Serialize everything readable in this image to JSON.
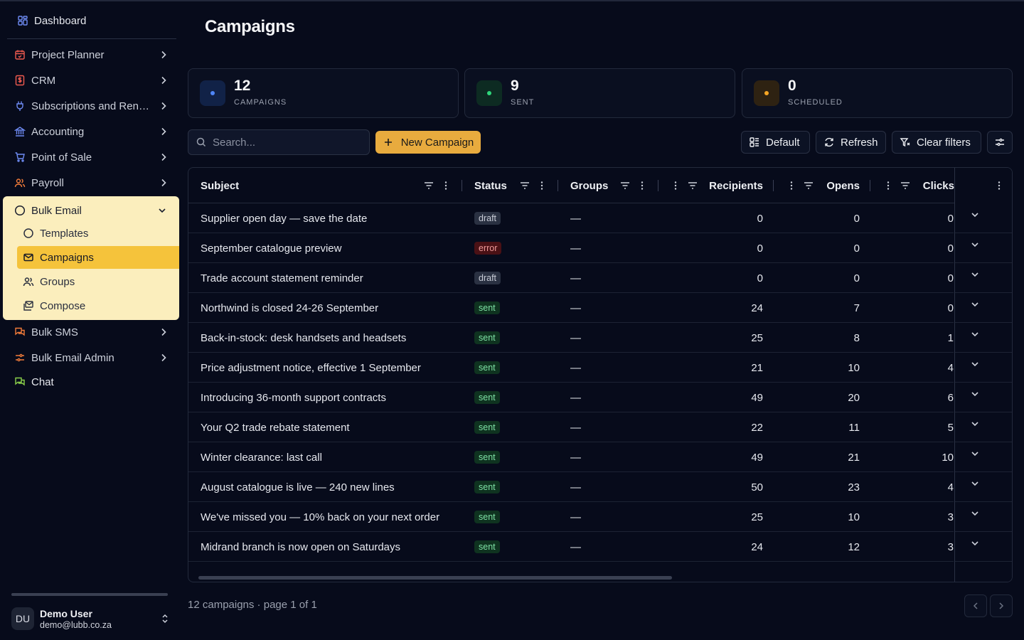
{
  "sidebar": {
    "dashboard_label": "Dashboard",
    "items": [
      {
        "label": "Project Planner",
        "icon": "calendar-icon",
        "color": "#ef5b4f"
      },
      {
        "label": "CRM",
        "icon": "dollar-icon",
        "color": "#ef5b4f"
      },
      {
        "label": "Subscriptions and Rent...",
        "icon": "plug-icon",
        "color": "#6f8cf5"
      },
      {
        "label": "Accounting",
        "icon": "bank-icon",
        "color": "#6f8cf5"
      },
      {
        "label": "Point of Sale",
        "icon": "cart-icon",
        "color": "#6f8cf5"
      },
      {
        "label": "Payroll",
        "icon": "users-icon",
        "color": "#f07b3a"
      }
    ],
    "bulk_email": {
      "label": "Bulk Email",
      "children": [
        "Templates",
        "Campaigns",
        "Groups",
        "Compose"
      ]
    },
    "items_after": [
      {
        "label": "Bulk SMS",
        "icon": "chat-icon",
        "color": "#f07b3a"
      },
      {
        "label": "Bulk Email Admin",
        "icon": "sliders-icon",
        "color": "#f07b3a"
      }
    ],
    "chat_label": "Chat",
    "user": {
      "initials": "DU",
      "name": "Demo User",
      "email": "demo@lubb.co.za"
    }
  },
  "page": {
    "title": "Campaigns"
  },
  "stats": [
    {
      "value": "12",
      "label": "CAMPAIGNS",
      "color": "#4f86f7",
      "bg": "#112247"
    },
    {
      "value": "9",
      "label": "SENT",
      "color": "#2ed67a",
      "bg": "#0d2b22"
    },
    {
      "value": "0",
      "label": "SCHEDULED",
      "color": "#f5a524",
      "bg": "#2e2212"
    }
  ],
  "toolbar": {
    "search_placeholder": "Search...",
    "new_campaign": "New Campaign",
    "default_label": "Default",
    "refresh_label": "Refresh",
    "clear_filters_label": "Clear filters"
  },
  "table": {
    "columns": [
      "Subject",
      "Status",
      "Groups",
      "Recipients",
      "Opens",
      "Clicks"
    ],
    "rows": [
      {
        "subject": "Supplier open day — save the date",
        "status": "draft",
        "groups": "—",
        "recipients": "0",
        "opens": "0",
        "clicks": "0"
      },
      {
        "subject": "September catalogue preview",
        "status": "error",
        "groups": "—",
        "recipients": "0",
        "opens": "0",
        "clicks": "0"
      },
      {
        "subject": "Trade account statement reminder",
        "status": "draft",
        "groups": "—",
        "recipients": "0",
        "opens": "0",
        "clicks": "0"
      },
      {
        "subject": "Northwind is closed 24-26 September",
        "status": "sent",
        "groups": "—",
        "recipients": "24",
        "opens": "7",
        "clicks": "0"
      },
      {
        "subject": "Back-in-stock: desk handsets and headsets",
        "status": "sent",
        "groups": "—",
        "recipients": "25",
        "opens": "8",
        "clicks": "1"
      },
      {
        "subject": "Price adjustment notice, effective 1 September",
        "status": "sent",
        "groups": "—",
        "recipients": "21",
        "opens": "10",
        "clicks": "4"
      },
      {
        "subject": "Introducing 36-month support contracts",
        "status": "sent",
        "groups": "—",
        "recipients": "49",
        "opens": "20",
        "clicks": "6"
      },
      {
        "subject": "Your Q2 trade rebate statement",
        "status": "sent",
        "groups": "—",
        "recipients": "22",
        "opens": "11",
        "clicks": "5"
      },
      {
        "subject": "Winter clearance: last call",
        "status": "sent",
        "groups": "—",
        "recipients": "49",
        "opens": "21",
        "clicks": "10"
      },
      {
        "subject": "August catalogue is live — 240 new lines",
        "status": "sent",
        "groups": "—",
        "recipients": "50",
        "opens": "23",
        "clicks": "4"
      },
      {
        "subject": "We've missed you — 10% back on your next order",
        "status": "sent",
        "groups": "—",
        "recipients": "25",
        "opens": "10",
        "clicks": "3"
      },
      {
        "subject": "Midrand branch is now open on Saturdays",
        "status": "sent",
        "groups": "—",
        "recipients": "24",
        "opens": "12",
        "clicks": "3"
      }
    ]
  },
  "footer": {
    "summary": "12 campaigns · page 1 of 1"
  }
}
